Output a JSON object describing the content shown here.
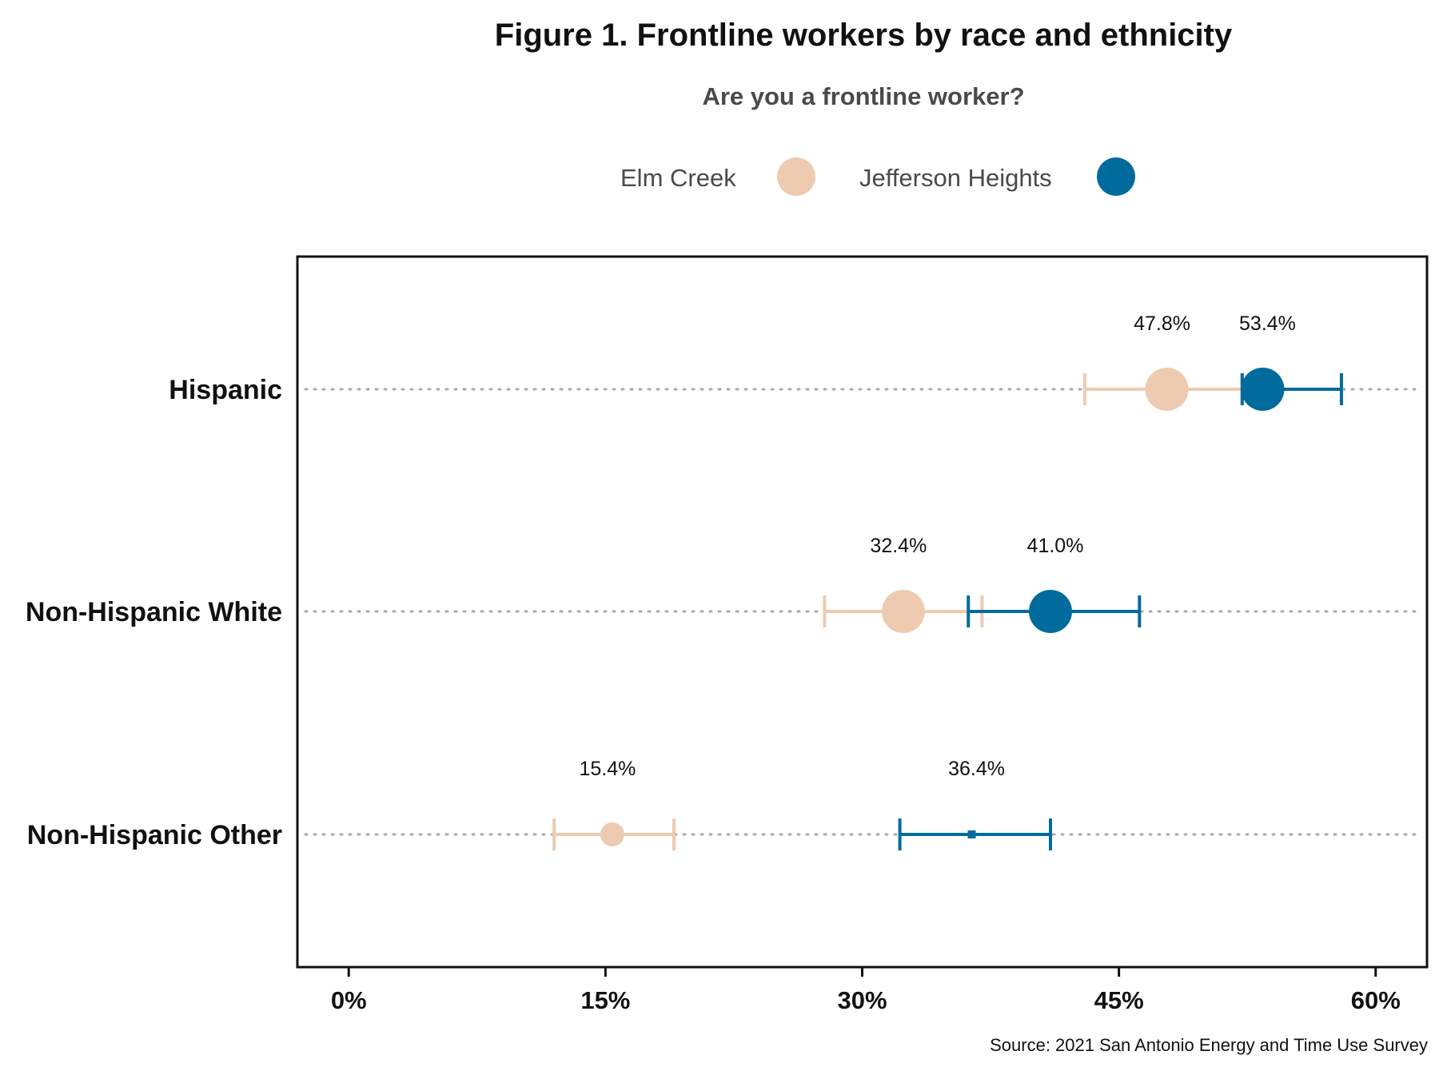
{
  "title": "Figure 1. Frontline workers by race and ethnicity",
  "subtitle": "Are you a frontline worker?",
  "legend": {
    "items": [
      {
        "label": "Elm Creek",
        "color": "#eecbb0"
      },
      {
        "label": "Jefferson Heights",
        "color": "#006b9c"
      }
    ]
  },
  "source": "Source: 2021 San Antonio Energy and Time Use Survey",
  "chart_data": {
    "type": "scatter",
    "title": "Figure 1. Frontline workers by race and ethnicity",
    "subtitle": "Are you a frontline worker?",
    "categories": [
      "Hispanic",
      "Non-Hispanic White",
      "Non-Hispanic Other"
    ],
    "xlim": [
      -3,
      63
    ],
    "x_ticks": [
      0,
      15,
      30,
      45,
      60
    ],
    "x_tick_labels": [
      "0%",
      "15%",
      "30%",
      "45%",
      "60%"
    ],
    "grid": "dotted horizontal guide lines at each category",
    "legend_position": "top",
    "series": [
      {
        "name": "Elm Creek",
        "color": "#eecbb0",
        "values": [
          47.8,
          32.4,
          15.4
        ],
        "labels": [
          "47.8%",
          "32.4%",
          "15.4%"
        ],
        "ci_low": [
          43.0,
          27.8,
          12.0
        ],
        "ci_high": [
          52.2,
          37.0,
          19.0
        ],
        "marker_size": [
          "large",
          "large",
          "medium"
        ]
      },
      {
        "name": "Jefferson Heights",
        "color": "#006b9c",
        "values": [
          53.4,
          41.0,
          36.4
        ],
        "labels": [
          "53.4%",
          "41.0%",
          "36.4%"
        ],
        "ci_low": [
          52.2,
          36.2,
          32.2
        ],
        "ci_high": [
          58.0,
          46.2,
          41.0
        ],
        "marker_size": [
          "large",
          "large",
          "tiny"
        ]
      }
    ]
  }
}
